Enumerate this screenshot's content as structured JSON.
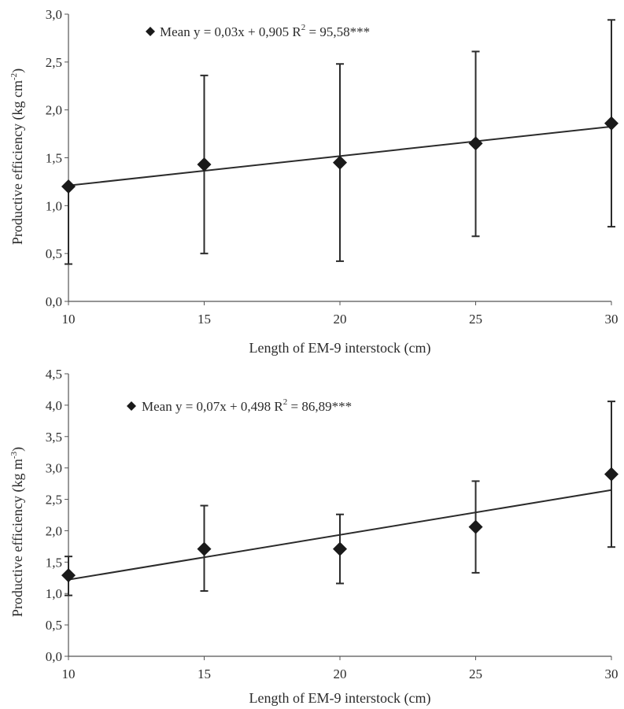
{
  "chart_data": [
    {
      "type": "scatter",
      "x": [
        10,
        15,
        20,
        25,
        30
      ],
      "series": [
        {
          "name": "Mean",
          "values": [
            1.2,
            1.43,
            1.45,
            1.65,
            1.86
          ],
          "error_low": [
            0.39,
            0.5,
            0.42,
            0.68,
            0.78
          ],
          "error_high": [
            1.2,
            2.36,
            2.48,
            2.61,
            2.94
          ],
          "trendline": {
            "slope": 0.03,
            "intercept": 0.905
          }
        }
      ],
      "legend_text": "Mean y = 0,03x + 0,905 R",
      "legend_sup": "2",
      "legend_tail": " = 95,58***",
      "legend_position": "top-left",
      "xlabel": "Length of EM-9 interstock (cm)",
      "ylabel_main": "Productive efficiency  (kg cm",
      "ylabel_sup": "-2",
      "ylabel_end": ")",
      "xlim": [
        10,
        30
      ],
      "ylim": [
        0,
        3
      ],
      "xticks": [
        "10",
        "15",
        "20",
        "25",
        "30"
      ],
      "yticks": [
        "0,0",
        "0,5",
        "1,0",
        "1,5",
        "2,0",
        "2,5",
        "3,0"
      ],
      "grid": false,
      "colors": {
        "marker": "#1a1a1a",
        "line": "#2b2b2b",
        "axis": "#555555"
      },
      "marker_icon": "diamond"
    },
    {
      "type": "scatter",
      "x": [
        10,
        15,
        20,
        25,
        30
      ],
      "series": [
        {
          "name": "Mean",
          "values": [
            1.29,
            1.71,
            1.71,
            2.06,
            2.9
          ],
          "error_low": [
            0.97,
            1.04,
            1.16,
            1.33,
            1.74
          ],
          "error_high": [
            1.59,
            2.4,
            2.26,
            2.79,
            4.06
          ],
          "trendline": {
            "slope": 0.07,
            "intercept": 0.498
          }
        }
      ],
      "legend_text": "Mean y = 0,07x + 0,498 R",
      "legend_sup": "2",
      "legend_tail": " = 86,89***",
      "legend_position": "top-left",
      "xlabel": "Length of EM-9 interstock (cm)",
      "ylabel_main": "Productive efficiency  (kg m",
      "ylabel_sup": "-3",
      "ylabel_end": ")",
      "xlim": [
        10,
        30
      ],
      "ylim": [
        0,
        4.5
      ],
      "xticks": [
        "10",
        "15",
        "20",
        "25",
        "30"
      ],
      "yticks": [
        "0,0",
        "0,5",
        "1,0",
        "1,5",
        "2,0",
        "2,5",
        "3,0",
        "3,5",
        "4,0",
        "4,5"
      ],
      "grid": false,
      "colors": {
        "marker": "#1a1a1a",
        "line": "#2b2b2b",
        "axis": "#555555"
      },
      "marker_icon": "diamond"
    }
  ]
}
